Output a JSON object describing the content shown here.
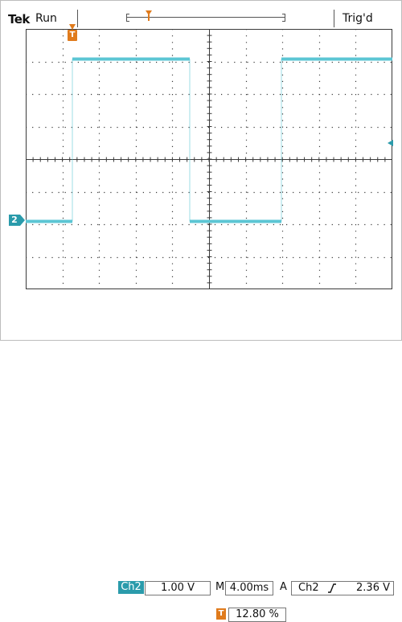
{
  "header": {
    "brand": "Tek",
    "acquisition_state": "Run",
    "trigger_status": "Trig'd"
  },
  "markers": {
    "trigger_position_label": "T",
    "channel_ground_label": "2"
  },
  "readouts": {
    "channel_label": "Ch2",
    "volts_per_div": "1.00 V",
    "timebase_prefix": "M",
    "time_per_div": "4.00ms",
    "trigger_mode": "A",
    "trigger_source": "Ch2",
    "trigger_level": "2.36 V",
    "trigger_position_icon": "T",
    "trigger_position_percent": "12.80 %"
  },
  "colors": {
    "trace": "#5cc6d4",
    "channel_tag": "#2a9bab",
    "trigger_marker": "#e07b1c",
    "grid": "#3a3a3a"
  },
  "icons": {
    "trigger_slope": "rising-edge-icon"
  }
}
